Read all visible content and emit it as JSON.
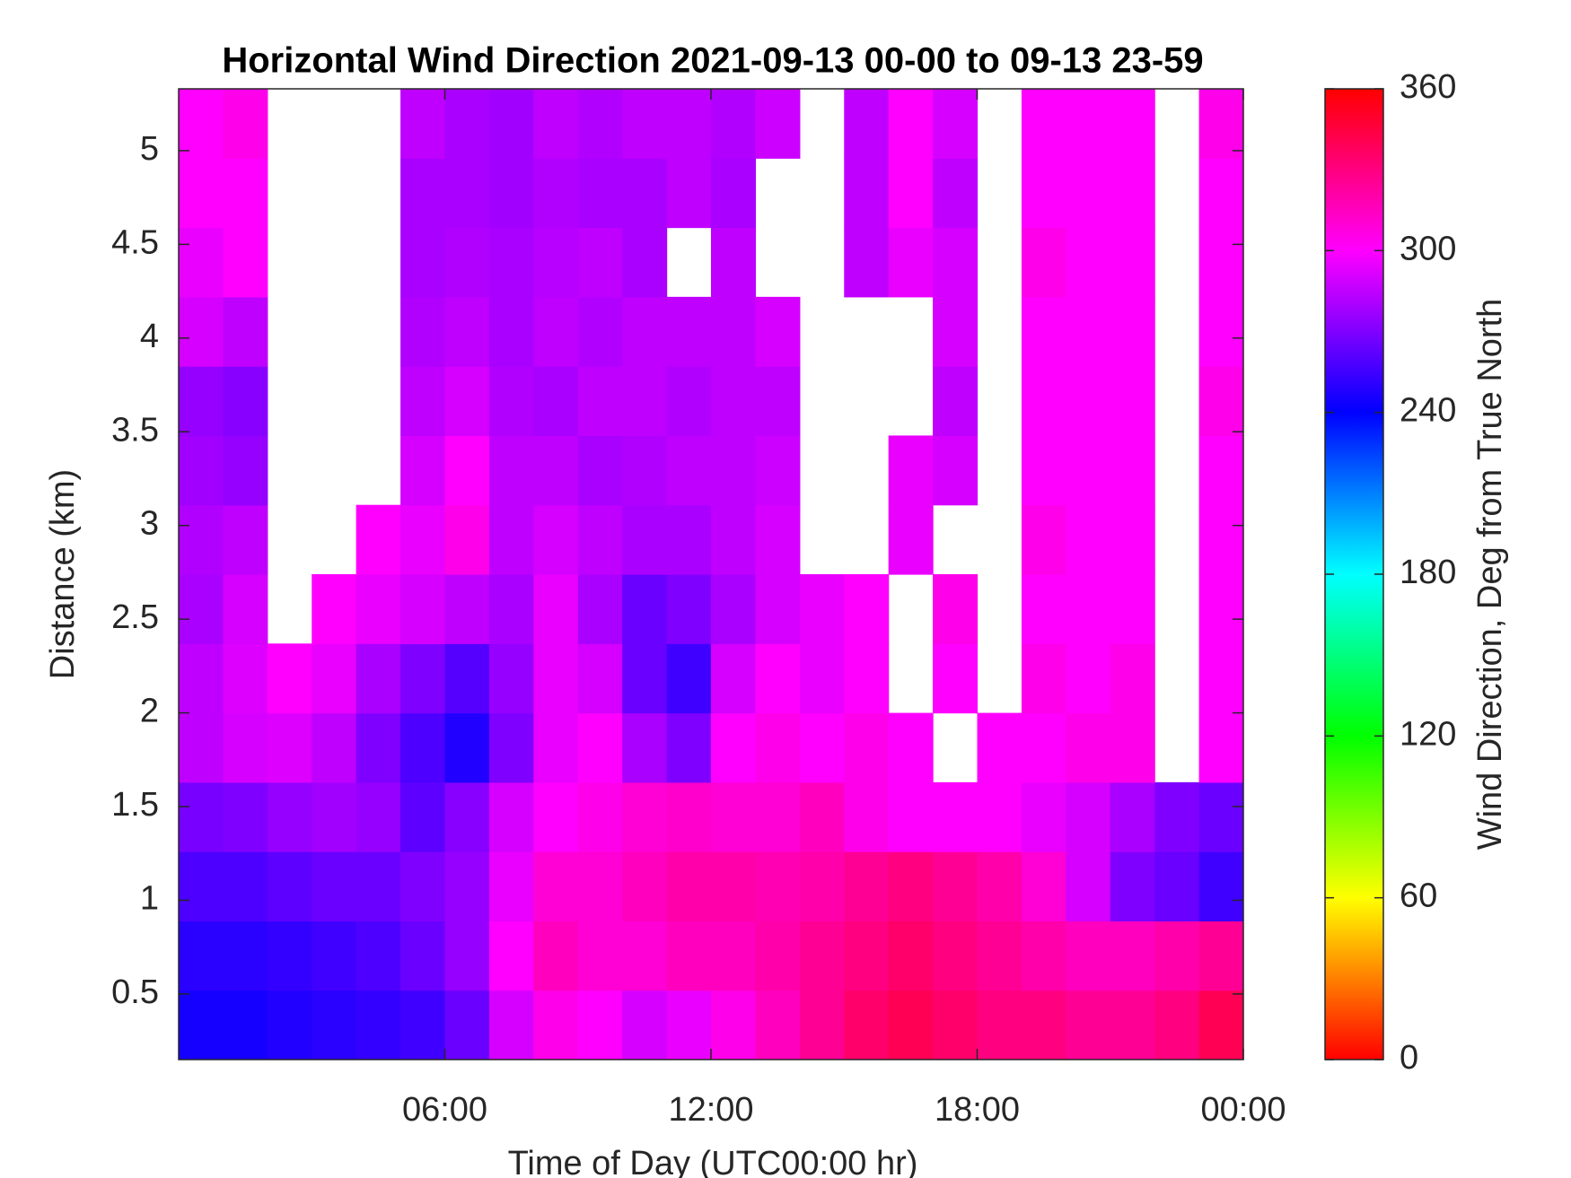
{
  "chart_data": {
    "type": "heatmap",
    "title": "Horizontal Wind Direction 2021-09-13 00-00 to 09-13 23-59",
    "xlabel": "Time of Day (UTC00:00 hr)",
    "ylabel": "Distance (km)",
    "colorbar_label": "Wind Direction, Deg from True North",
    "colormap": "hsv",
    "x": [
      0.5,
      1.5,
      2.5,
      3.5,
      4.5,
      5.5,
      6.5,
      7.5,
      8.5,
      9.5,
      10.5,
      11.5,
      12.5,
      13.5,
      14.5,
      15.5,
      16.5,
      17.5,
      18.5,
      19.5,
      20.5,
      21.5,
      22.5,
      23.5
    ],
    "y": [
      0.335,
      0.705,
      1.075,
      1.445,
      1.815,
      2.185,
      2.555,
      2.925,
      3.295,
      3.665,
      4.035,
      4.405,
      4.775,
      5.145
    ],
    "z": [
      [
        245,
        245,
        248,
        250,
        252,
        255,
        265,
        290,
        305,
        300,
        290,
        295,
        305,
        315,
        325,
        335,
        340,
        335,
        330,
        330,
        325,
        325,
        330,
        340
      ],
      [
        250,
        250,
        252,
        255,
        258,
        265,
        275,
        300,
        315,
        310,
        310,
        315,
        315,
        320,
        325,
        330,
        335,
        330,
        325,
        320,
        315,
        315,
        320,
        325
      ],
      [
        258,
        258,
        262,
        265,
        265,
        270,
        275,
        295,
        310,
        310,
        315,
        320,
        320,
        318,
        320,
        325,
        330,
        325,
        320,
        310,
        290,
        270,
        265,
        255
      ],
      [
        268,
        270,
        275,
        278,
        275,
        262,
        272,
        290,
        300,
        305,
        310,
        312,
        310,
        310,
        315,
        305,
        300,
        300,
        300,
        295,
        290,
        280,
        270,
        265
      ],
      [
        285,
        290,
        292,
        285,
        270,
        258,
        248,
        270,
        295,
        300,
        280,
        270,
        300,
        305,
        300,
        305,
        300,
        null,
        300,
        300,
        305,
        305,
        null,
        300
      ],
      [
        285,
        292,
        300,
        295,
        280,
        270,
        260,
        275,
        295,
        290,
        265,
        255,
        290,
        300,
        295,
        300,
        null,
        300,
        null,
        305,
        300,
        305,
        null,
        300
      ],
      [
        280,
        290,
        null,
        300,
        295,
        290,
        285,
        280,
        295,
        280,
        265,
        270,
        280,
        290,
        295,
        300,
        null,
        305,
        null,
        300,
        300,
        300,
        null,
        300
      ],
      [
        282,
        285,
        null,
        null,
        300,
        295,
        305,
        285,
        290,
        285,
        280,
        280,
        285,
        290,
        null,
        null,
        295,
        null,
        null,
        305,
        300,
        300,
        null,
        300
      ],
      [
        278,
        275,
        null,
        null,
        null,
        290,
        300,
        285,
        285,
        280,
        282,
        285,
        285,
        288,
        null,
        null,
        295,
        290,
        null,
        300,
        300,
        300,
        null,
        300
      ],
      [
        275,
        272,
        null,
        null,
        null,
        285,
        290,
        282,
        280,
        285,
        285,
        282,
        285,
        285,
        null,
        null,
        null,
        285,
        null,
        300,
        300,
        300,
        null,
        305
      ],
      [
        290,
        285,
        null,
        null,
        null,
        282,
        285,
        280,
        285,
        282,
        285,
        285,
        285,
        290,
        null,
        null,
        null,
        290,
        null,
        300,
        300,
        300,
        null,
        300
      ],
      [
        295,
        300,
        null,
        null,
        null,
        280,
        282,
        280,
        283,
        285,
        280,
        null,
        285,
        null,
        null,
        285,
        295,
        290,
        null,
        305,
        300,
        300,
        null,
        300
      ],
      [
        300,
        300,
        null,
        null,
        null,
        280,
        280,
        278,
        282,
        280,
        280,
        285,
        280,
        null,
        null,
        285,
        300,
        285,
        null,
        300,
        300,
        300,
        null,
        300
      ],
      [
        300,
        305,
        null,
        null,
        null,
        285,
        280,
        278,
        285,
        282,
        285,
        285,
        282,
        288,
        null,
        285,
        300,
        290,
        null,
        300,
        300,
        300,
        null,
        305
      ]
    ],
    "xlim": [
      0,
      24
    ],
    "xticks": [
      {
        "value": 6,
        "label": "06:00"
      },
      {
        "value": 12,
        "label": "12:00"
      },
      {
        "value": 18,
        "label": "18:00"
      },
      {
        "value": 24,
        "label": "00:00"
      }
    ],
    "ylim": [
      0.15,
      5.33
    ],
    "yticks": [
      0.5,
      1,
      1.5,
      2,
      2.5,
      3,
      3.5,
      4,
      4.5,
      5
    ],
    "clim": [
      0,
      360
    ],
    "cticks": [
      0,
      60,
      120,
      180,
      240,
      300,
      360
    ]
  }
}
